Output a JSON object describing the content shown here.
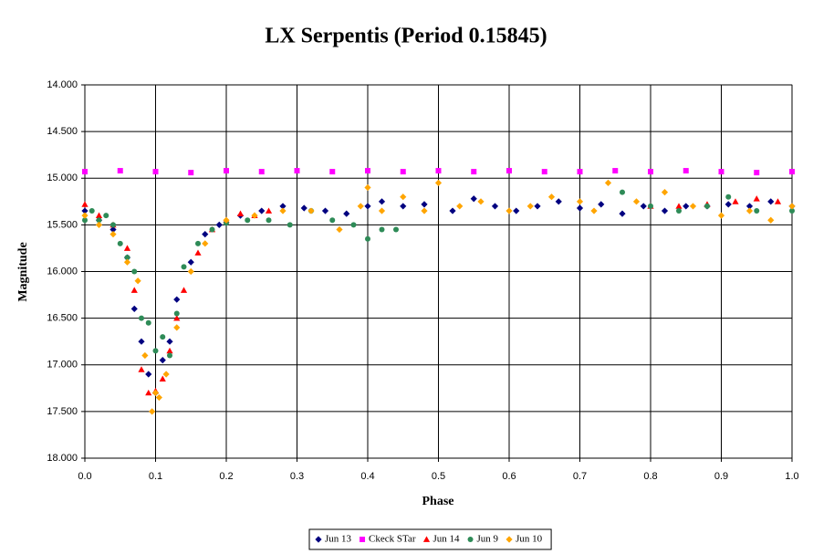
{
  "chart_data": {
    "type": "scatter",
    "title": "LX Serpentis (Period 0.15845)",
    "xlabel": "Phase",
    "ylabel": "Magnitude",
    "xlim": [
      0,
      1
    ],
    "ylim": [
      14,
      18
    ],
    "y_reversed": true,
    "grid": true,
    "legend": "bottom",
    "xticks": [
      {
        "value": 0,
        "label": "0.0"
      },
      0.1,
      0.2,
      0.3,
      0.4,
      0.5,
      0.6,
      0.7,
      0.8,
      0.9,
      {
        "value": 1,
        "label": "1.0"
      }
    ],
    "yticks": [
      {
        "value": 14,
        "label": "14.000"
      },
      {
        "value": 14.5,
        "label": "14.500"
      },
      {
        "value": 15,
        "label": "15.000"
      },
      {
        "value": 15.5,
        "label": "15.500"
      },
      {
        "value": 16,
        "label": "16.000"
      },
      {
        "value": 16.5,
        "label": "16.500"
      },
      {
        "value": 17,
        "label": "17.000"
      },
      {
        "value": 17.5,
        "label": "17.500"
      },
      {
        "value": 18,
        "label": "18.000"
      }
    ],
    "series": [
      {
        "name": "Jun 13",
        "color": "#000080",
        "marker": "diamond",
        "x": [
          0.0,
          0.02,
          0.04,
          0.06,
          0.07,
          0.08,
          0.09,
          0.1,
          0.11,
          0.12,
          0.13,
          0.15,
          0.17,
          0.19,
          0.22,
          0.25,
          0.28,
          0.31,
          0.34,
          0.37,
          0.4,
          0.42,
          0.45,
          0.48,
          0.52,
          0.55,
          0.58,
          0.61,
          0.64,
          0.67,
          0.7,
          0.73,
          0.76,
          0.79,
          0.82,
          0.85,
          0.88,
          0.91,
          0.94,
          0.97,
          1.0
        ],
        "values": [
          15.35,
          15.45,
          15.55,
          15.85,
          16.4,
          16.75,
          17.1,
          17.3,
          16.95,
          16.75,
          16.3,
          15.9,
          15.6,
          15.5,
          15.4,
          15.35,
          15.3,
          15.32,
          15.35,
          15.38,
          15.3,
          15.25,
          15.3,
          15.28,
          15.35,
          15.22,
          15.3,
          15.35,
          15.3,
          15.25,
          15.32,
          15.28,
          15.38,
          15.3,
          15.35,
          15.3,
          15.3,
          15.28,
          15.3,
          15.25,
          15.3
        ]
      },
      {
        "name": "Ckeck STar",
        "color": "#ff00ff",
        "marker": "square",
        "x": [
          0,
          0.05,
          0.1,
          0.15,
          0.2,
          0.25,
          0.3,
          0.35,
          0.4,
          0.45,
          0.5,
          0.55,
          0.6,
          0.65,
          0.7,
          0.75,
          0.8,
          0.85,
          0.9,
          0.95,
          1.0
        ],
        "values": [
          14.93,
          14.92,
          14.93,
          14.94,
          14.92,
          14.93,
          14.92,
          14.93,
          14.92,
          14.93,
          14.92,
          14.93,
          14.92,
          14.93,
          14.93,
          14.92,
          14.93,
          14.92,
          14.93,
          14.94,
          14.93
        ]
      },
      {
        "name": "Jun 14",
        "color": "#ff0000",
        "marker": "triangle",
        "x": [
          0.0,
          0.02,
          0.04,
          0.06,
          0.07,
          0.08,
          0.09,
          0.1,
          0.11,
          0.12,
          0.13,
          0.14,
          0.16,
          0.18,
          0.2,
          0.22,
          0.24,
          0.26,
          0.8,
          0.84,
          0.88,
          0.92,
          0.95,
          0.98
        ],
        "values": [
          15.28,
          15.4,
          15.5,
          15.75,
          16.2,
          17.05,
          17.3,
          17.28,
          17.15,
          16.85,
          16.5,
          16.2,
          15.8,
          15.55,
          15.45,
          15.38,
          15.4,
          15.35,
          15.3,
          15.3,
          15.28,
          15.25,
          15.22,
          15.25
        ]
      },
      {
        "name": "Jun 9",
        "color": "#2e8b57",
        "marker": "circle",
        "x": [
          0.0,
          0.01,
          0.02,
          0.03,
          0.04,
          0.05,
          0.06,
          0.07,
          0.08,
          0.09,
          0.1,
          0.11,
          0.12,
          0.13,
          0.14,
          0.16,
          0.18,
          0.2,
          0.23,
          0.26,
          0.29,
          0.32,
          0.35,
          0.38,
          0.4,
          0.42,
          0.44,
          0.76,
          0.8,
          0.84,
          0.88,
          0.91,
          0.95,
          1.0
        ],
        "values": [
          15.45,
          15.35,
          15.45,
          15.4,
          15.5,
          15.7,
          15.85,
          16.0,
          16.5,
          16.55,
          16.85,
          16.7,
          16.9,
          16.45,
          15.95,
          15.7,
          15.55,
          15.48,
          15.45,
          15.45,
          15.5,
          15.35,
          15.45,
          15.5,
          15.65,
          15.55,
          15.55,
          15.15,
          15.3,
          15.35,
          15.3,
          15.2,
          15.35,
          15.35
        ]
      },
      {
        "name": "Jun 10",
        "color": "#ffa500",
        "marker": "diamond",
        "x": [
          0.0,
          0.02,
          0.04,
          0.06,
          0.075,
          0.085,
          0.095,
          0.1,
          0.105,
          0.115,
          0.13,
          0.15,
          0.17,
          0.2,
          0.24,
          0.28,
          0.32,
          0.36,
          0.39,
          0.4,
          0.42,
          0.45,
          0.48,
          0.5,
          0.53,
          0.56,
          0.6,
          0.63,
          0.66,
          0.7,
          0.72,
          0.74,
          0.78,
          0.82,
          0.86,
          0.9,
          0.94,
          0.97,
          1.0
        ],
        "values": [
          15.4,
          15.5,
          15.6,
          15.9,
          16.1,
          16.9,
          17.5,
          17.3,
          17.35,
          17.1,
          16.6,
          16.0,
          15.7,
          15.45,
          15.4,
          15.35,
          15.35,
          15.55,
          15.3,
          15.1,
          15.35,
          15.2,
          15.35,
          15.05,
          15.3,
          15.25,
          15.35,
          15.3,
          15.2,
          15.25,
          15.35,
          15.05,
          15.25,
          15.15,
          15.3,
          15.4,
          15.35,
          15.45,
          15.3
        ]
      }
    ]
  }
}
